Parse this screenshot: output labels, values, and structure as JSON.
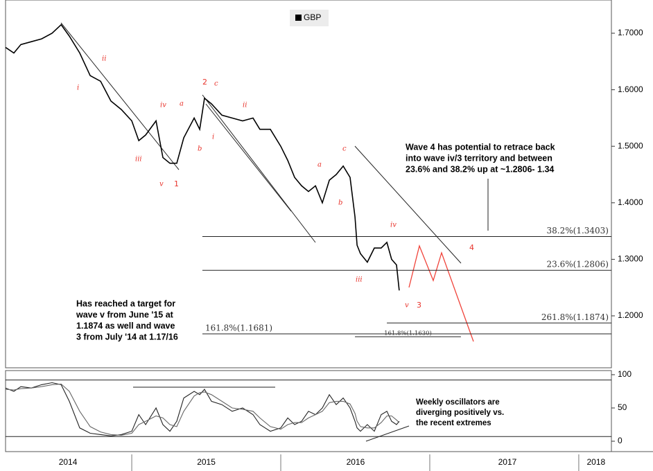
{
  "chart_data": [
    {
      "type": "line",
      "x": [
        2014.153,
        2014.209,
        2014.256,
        2014.326,
        2014.395,
        2014.465,
        2014.526,
        2014.581,
        2014.651,
        2014.721,
        2014.791,
        2014.86,
        2014.93,
        2015.0,
        2015.047,
        2015.093,
        2015.163,
        2015.209,
        2015.256,
        2015.302,
        2015.349,
        2015.419,
        2015.456,
        2015.488,
        2015.535,
        2015.605,
        2015.674,
        2015.744,
        2015.814,
        2015.86,
        2015.93,
        2016.0,
        2016.047,
        2016.093,
        2016.14,
        2016.186,
        2016.233,
        2016.279,
        2016.326,
        2016.372,
        2016.419,
        2016.465,
        2016.498,
        2016.512,
        2016.535,
        2016.581,
        2016.628,
        2016.674,
        2016.712,
        2016.744,
        2016.777,
        2016.795
      ],
      "series": [
        {
          "name": "GBP",
          "color": "#000000",
          "values": [
            1.675,
            1.665,
            1.68,
            1.685,
            1.69,
            1.7,
            1.715,
            1.695,
            1.665,
            1.625,
            1.615,
            1.58,
            1.565,
            1.545,
            1.51,
            1.52,
            1.545,
            1.48,
            1.47,
            1.47,
            1.515,
            1.55,
            1.53,
            1.585,
            1.575,
            1.555,
            1.55,
            1.545,
            1.55,
            1.53,
            1.53,
            1.5,
            1.475,
            1.445,
            1.43,
            1.42,
            1.43,
            1.4,
            1.44,
            1.45,
            1.465,
            1.445,
            1.375,
            1.325,
            1.31,
            1.295,
            1.32,
            1.32,
            1.33,
            1.3,
            1.29,
            1.245
          ]
        }
      ],
      "xlim": [
        2014.153,
        2018.219
      ],
      "ylim": [
        1.1093,
        1.7588
      ],
      "yticks": [
        {
          "value": 1.7,
          "label": "1.7000"
        },
        {
          "value": 1.6,
          "label": "1.6000"
        },
        {
          "value": 1.5,
          "label": "1.5000"
        },
        {
          "value": 1.4,
          "label": "1.4000"
        },
        {
          "value": 1.3,
          "label": "1.3000"
        },
        {
          "value": 1.2,
          "label": "1.2000"
        }
      ],
      "xticks": [
        2015,
        2016,
        2017,
        2018
      ],
      "xlabels": [
        {
          "value": 2014.572,
          "label": "2014"
        },
        {
          "value": 2015.5,
          "label": "2015"
        },
        {
          "value": 2016.502,
          "label": "2016"
        },
        {
          "value": 2017.521,
          "label": "2017"
        },
        {
          "value": 2018.116,
          "label": "2018"
        }
      ],
      "legend": "top",
      "fib_levels": [
        {
          "label": "38.2%(1.3403)",
          "value": 1.3403,
          "from": 2015.474,
          "to": 2018.219,
          "label_at": "end"
        },
        {
          "label": "23.6%(1.2806)",
          "value": 1.2806,
          "from": 2015.474,
          "to": 2018.219,
          "label_at": "end"
        },
        {
          "label": "261.8%(1.1874)",
          "value": 1.1874,
          "from": 2016.712,
          "to": 2018.219,
          "label_at": "end"
        },
        {
          "label": "161.8%(1.1681)",
          "value": 1.1681,
          "from": 2015.474,
          "to": 2018.219,
          "label_at": "start"
        },
        {
          "label": "161.8%(1.1630)",
          "value": 1.163,
          "from": 2016.498,
          "to": 2017.209,
          "label_at": "middle"
        }
      ]
    },
    {
      "type": "line",
      "x": [
        2014.153,
        2014.209,
        2014.256,
        2014.326,
        2014.395,
        2014.465,
        2014.526,
        2014.581,
        2014.651,
        2014.721,
        2014.791,
        2014.86,
        2014.93,
        2015.0,
        2015.047,
        2015.093,
        2015.163,
        2015.209,
        2015.256,
        2015.302,
        2015.349,
        2015.419,
        2015.456,
        2015.488,
        2015.535,
        2015.605,
        2015.674,
        2015.744,
        2015.814,
        2015.86,
        2015.93,
        2016.0,
        2016.047,
        2016.093,
        2016.14,
        2016.186,
        2016.233,
        2016.279,
        2016.326,
        2016.372,
        2016.419,
        2016.465,
        2016.498,
        2016.512,
        2016.535,
        2016.581,
        2016.628,
        2016.674,
        2016.712,
        2016.744,
        2016.777,
        2016.795
      ],
      "series": [
        {
          "color": "#222222",
          "values": [
            80,
            75,
            82,
            80,
            85,
            88,
            85,
            60,
            20,
            12,
            10,
            8,
            10,
            15,
            40,
            25,
            50,
            25,
            15,
            30,
            65,
            75,
            70,
            78,
            60,
            55,
            45,
            50,
            40,
            25,
            15,
            20,
            35,
            25,
            30,
            45,
            40,
            50,
            70,
            55,
            65,
            50,
            30,
            20,
            15,
            25,
            15,
            40,
            45,
            30,
            25,
            30
          ]
        },
        {
          "color": "#666666",
          "values": [
            78,
            77,
            79,
            80,
            82,
            85,
            86,
            75,
            45,
            22,
            14,
            10,
            9,
            12,
            25,
            30,
            38,
            35,
            25,
            22,
            45,
            68,
            73,
            74,
            70,
            60,
            50,
            48,
            45,
            35,
            22,
            18,
            25,
            28,
            28,
            35,
            40,
            45,
            58,
            60,
            60,
            56,
            42,
            30,
            22,
            20,
            20,
            28,
            38,
            38,
            32,
            28
          ]
        }
      ],
      "xlim": [
        2014.153,
        2018.219
      ],
      "ylim": [
        -15.6,
        106.2
      ],
      "yticks": [
        0,
        50,
        100
      ],
      "hlines": [
        92,
        7
      ]
    }
  ],
  "annotations": {
    "wave_labels": [
      "ii",
      "i",
      "iv",
      "iii",
      "v",
      "1",
      "2",
      "c",
      "a",
      "b",
      "i",
      "ii",
      "c",
      "a",
      "b",
      "iv",
      "iii",
      "v",
      "3",
      "4"
    ],
    "notes": [
      [
        "Wave 4 has potential to retrace back",
        "into wave iv/3 territory and between",
        "23.6% and 38.2% up at ~1.2806- 1.34"
      ],
      [
        "Has reached a target for",
        "wave v from June '15  at",
        "1.1874 as well and wave",
        "3 from July '14 at 1.17/16"
      ],
      [
        "Weekly oscillators are",
        "diverging positively vs.",
        "the recent extremes"
      ]
    ]
  }
}
